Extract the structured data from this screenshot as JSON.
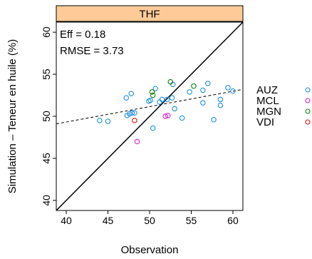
{
  "chart_data": {
    "type": "scatter",
    "panel_title": "THF",
    "xlabel": "Observation",
    "ylabel": "Simulation – Teneur en huile (%)",
    "xlim": [
      38.8,
      61.2
    ],
    "ylim": [
      38.8,
      61.2
    ],
    "x_ticks": [
      40,
      45,
      50,
      55,
      60
    ],
    "y_ticks": [
      40,
      45,
      50,
      55,
      60
    ],
    "annotations": [
      "Eff = 0.18",
      "RMSE = 3.73"
    ],
    "reference_line": {
      "type": "identity",
      "style": "solid"
    },
    "regression_line": {
      "style": "dashed",
      "points": [
        [
          38.8,
          49.1
        ],
        [
          61.2,
          53.2
        ]
      ]
    },
    "legend_position": "right",
    "series": [
      {
        "name": "AUZ",
        "color": "#1f8fe0",
        "points": [
          [
            44.0,
            49.5
          ],
          [
            45.0,
            49.4
          ],
          [
            47.3,
            50.1
          ],
          [
            47.6,
            50.3
          ],
          [
            47.9,
            50.4
          ],
          [
            48.2,
            50.4
          ],
          [
            47.2,
            52.2
          ],
          [
            47.8,
            52.7
          ],
          [
            49.9,
            51.8
          ],
          [
            50.1,
            51.9
          ],
          [
            50.7,
            53.3
          ],
          [
            51.2,
            51.7
          ],
          [
            51.5,
            52.0
          ],
          [
            52.1,
            52.0
          ],
          [
            52.8,
            53.8
          ],
          [
            52.7,
            52.2
          ],
          [
            53.0,
            50.9
          ],
          [
            53.9,
            49.8
          ],
          [
            50.4,
            48.6
          ],
          [
            54.8,
            52.9
          ],
          [
            56.4,
            53.1
          ],
          [
            57.0,
            53.9
          ],
          [
            56.4,
            51.6
          ],
          [
            57.7,
            49.6
          ],
          [
            58.5,
            51.3
          ],
          [
            58.5,
            52.0
          ],
          [
            59.4,
            53.4
          ],
          [
            60.0,
            53.0
          ]
        ]
      },
      {
        "name": "MCL",
        "color": "#e020e0",
        "points": [
          [
            48.5,
            47.0
          ],
          [
            51.9,
            50.0
          ],
          [
            52.2,
            50.1
          ]
        ]
      },
      {
        "name": "MGN",
        "color": "#108010",
        "points": [
          [
            50.3,
            52.9
          ],
          [
            50.4,
            52.5
          ],
          [
            52.5,
            54.1
          ],
          [
            55.3,
            53.6
          ]
        ]
      },
      {
        "name": "VDI",
        "color": "#e01010",
        "points": [
          [
            48.2,
            49.5
          ]
        ]
      }
    ]
  }
}
